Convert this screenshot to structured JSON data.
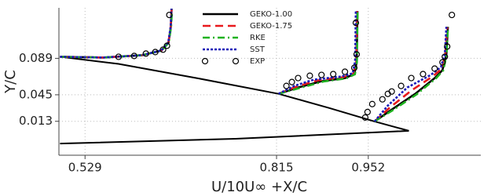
{
  "chart_data": {
    "type": "line",
    "x_label": "U/10U∞ +X/C",
    "y_label": "Y/C",
    "xlim": [
      0.49,
      1.12
    ],
    "ylim": [
      -0.028,
      0.15
    ],
    "xticks": [
      0.529,
      0.815,
      0.952
    ],
    "yticks": [
      0.013,
      0.045,
      0.089
    ],
    "grid": true,
    "legend": "upper center",
    "surfaces": {
      "color": "#000000",
      "x": [
        0.4917,
        0.5791,
        0.6957,
        0.818,
        0.8938,
        0.9614,
        1.0127,
        null,
        0.4917,
        0.754,
        1.0127
      ],
      "y": [
        0.0909,
        0.0823,
        0.0652,
        0.0461,
        0.029,
        0.0128,
        0.0014,
        null,
        -0.0139,
        -0.0081,
        0.0014
      ]
    },
    "series": [
      {
        "name": "GEKO-1.00",
        "color": "#000000",
        "mode": "line",
        "dash": "none",
        "x": [
          0.4917,
          0.5558,
          0.6141,
          0.6432,
          0.6537,
          0.6572,
          0.6584,
          null,
          0.818,
          0.8471,
          0.8821,
          0.9171,
          0.9311,
          0.9346,
          0.9358,
          null,
          0.9614,
          0.987,
          1.022,
          1.0511,
          1.0628,
          1.0686,
          1.0709
        ],
        "y": [
          0.0909,
          0.09,
          0.0928,
          0.0985,
          0.108,
          0.1271,
          0.149,
          null,
          0.0461,
          0.0538,
          0.0614,
          0.0652,
          0.07,
          0.0842,
          0.1461,
          null,
          0.0128,
          0.0271,
          0.0461,
          0.0652,
          0.0747,
          0.0938,
          0.1271
        ]
      },
      {
        "name": "GEKO-1.75",
        "color": "#e8191c",
        "mode": "line",
        "dash": "10,6",
        "x": [
          0.4917,
          0.5558,
          0.6141,
          0.643,
          0.6535,
          0.657,
          0.6582,
          null,
          0.818,
          0.844,
          0.876,
          0.914,
          0.93,
          0.934,
          0.935,
          null,
          0.9614,
          0.984,
          1.016,
          1.048,
          1.062,
          1.067,
          1.07
        ],
        "y": [
          0.0909,
          0.09,
          0.0928,
          0.0985,
          0.108,
          0.1271,
          0.149,
          null,
          0.0461,
          0.0547,
          0.0624,
          0.0662,
          0.0705,
          0.0846,
          0.1461,
          null,
          0.0128,
          0.0295,
          0.05,
          0.0671,
          0.0766,
          0.0938,
          0.1271
        ]
      },
      {
        "name": "RKE",
        "color": "#1fb21f",
        "mode": "line",
        "dash": "9,4,2,4",
        "x": [
          0.4917,
          0.5558,
          0.6141,
          0.6435,
          0.654,
          0.6575,
          0.6587,
          null,
          0.818,
          0.849,
          0.885,
          0.919,
          0.932,
          0.935,
          0.936,
          null,
          0.9614,
          0.989,
          1.024,
          1.053,
          1.064,
          1.069,
          1.071
        ],
        "y": [
          0.0909,
          0.09,
          0.0928,
          0.0985,
          0.108,
          0.1271,
          0.145,
          null,
          0.0461,
          0.053,
          0.061,
          0.0648,
          0.0697,
          0.0842,
          0.1461,
          null,
          0.0128,
          0.0265,
          0.0455,
          0.0648,
          0.0745,
          0.0938,
          0.1271
        ]
      },
      {
        "name": "SST",
        "color": "#1a1ab8",
        "mode": "line",
        "dash": "3,2",
        "x": [
          0.4917,
          0.5558,
          0.6141,
          0.6428,
          0.6532,
          0.6568,
          0.658,
          null,
          0.818,
          0.8414,
          0.8705,
          0.9113,
          0.9288,
          0.9323,
          0.9334,
          null,
          0.9614,
          0.9812,
          1.0103,
          1.0453,
          1.0604,
          1.0663,
          1.0686
        ],
        "y": [
          0.0909,
          0.09,
          0.0928,
          0.0985,
          0.108,
          0.1271,
          0.149,
          null,
          0.0461,
          0.0557,
          0.0633,
          0.0671,
          0.0709,
          0.0851,
          0.1461,
          null,
          0.0128,
          0.0319,
          0.0538,
          0.069,
          0.0785,
          0.0938,
          0.1271
        ]
      },
      {
        "name": "EXP",
        "color": "#000000",
        "mode": "markers",
        "x": [
          0.5791,
          0.6024,
          0.6199,
          0.6339,
          0.6455,
          0.6514,
          0.6549,
          0.8297,
          0.8379,
          0.8472,
          0.8647,
          0.8821,
          0.8996,
          0.9171,
          0.9311,
          0.9346,
          0.9334,
          0.9474,
          0.9509,
          0.9579,
          0.9731,
          0.9812,
          0.987,
          1.001,
          1.0162,
          1.0337,
          1.0511,
          1.0628,
          1.0663,
          1.0698,
          1.0768
        ],
        "y": [
          0.0909,
          0.0919,
          0.0947,
          0.0966,
          0.0995,
          0.1042,
          0.1414,
          0.0557,
          0.0604,
          0.0652,
          0.068,
          0.069,
          0.07,
          0.0728,
          0.0776,
          0.0938,
          0.1319,
          0.0176,
          0.0242,
          0.0338,
          0.0395,
          0.0461,
          0.049,
          0.0557,
          0.0652,
          0.07,
          0.0766,
          0.0842,
          0.0909,
          0.1033,
          0.1414
        ]
      }
    ]
  }
}
